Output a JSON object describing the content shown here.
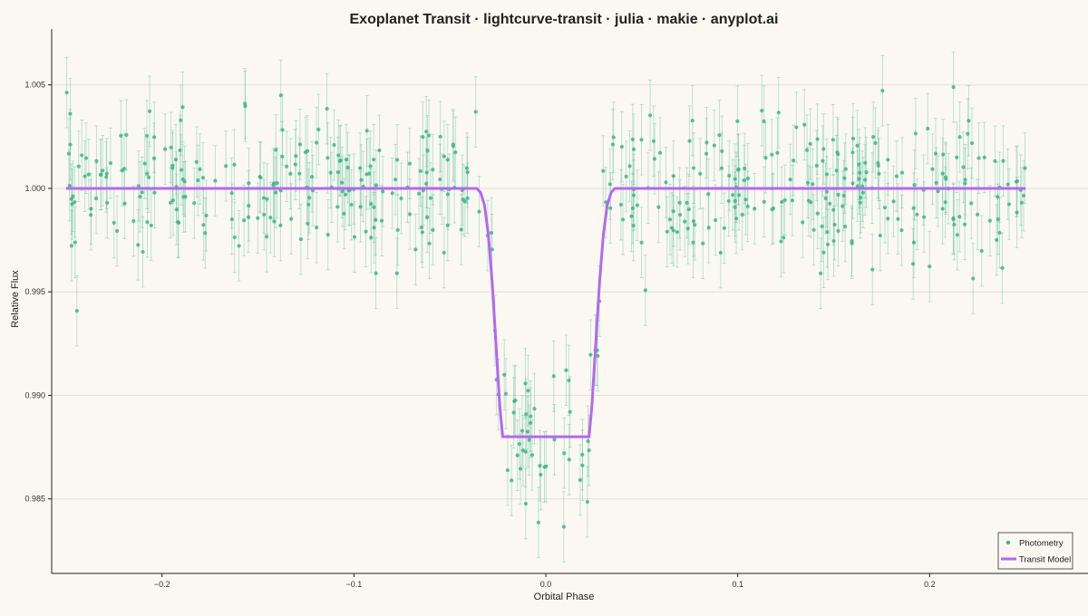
{
  "chart_data": {
    "type": "scatter",
    "title": "Exoplanet Transit · lightcurve-transit · julia · makie · anyplot.ai",
    "xlabel": "Orbital Phase",
    "ylabel": "Relative Flux",
    "xlim": [
      -0.2575,
      0.2825
    ],
    "ylim": [
      0.9814,
      1.0077
    ],
    "x_ticks": [
      -0.2,
      -0.1,
      0.0,
      0.1,
      0.2
    ],
    "x_tick_labels": [
      "−0.2",
      "−0.1",
      "0.0",
      "0.1",
      "0.2"
    ],
    "y_ticks": [
      0.985,
      0.99,
      0.995,
      1.0,
      1.005
    ],
    "y_tick_labels": [
      "0.985",
      "0.990",
      "0.995",
      "1.000",
      "1.005"
    ],
    "grid": "horizontal",
    "legend_position": "bottom-right",
    "colors": {
      "photometry": "#3DB58A",
      "model": "#B667F1",
      "background": "#FAF8F1"
    },
    "series": [
      {
        "name": "Photometry",
        "kind": "points-with-errorbars",
        "x_range": [
          -0.25,
          0.25
        ],
        "n_points": 500,
        "baseline_flux": 1.0,
        "flux_scatter_sd": 0.0017,
        "error_bar_halfwidth": 0.0017
      },
      {
        "name": "Transit Model",
        "kind": "line",
        "points": [
          [
            -0.25,
            1.0
          ],
          [
            -0.036,
            1.0
          ],
          [
            -0.034,
            0.9998
          ],
          [
            -0.032,
            0.9992
          ],
          [
            -0.03,
            0.9978
          ],
          [
            -0.028,
            0.9955
          ],
          [
            -0.026,
            0.9925
          ],
          [
            -0.024,
            0.9895
          ],
          [
            -0.0225,
            0.988
          ],
          [
            0.0225,
            0.988
          ],
          [
            0.024,
            0.9895
          ],
          [
            0.026,
            0.9925
          ],
          [
            0.028,
            0.9955
          ],
          [
            0.03,
            0.9978
          ],
          [
            0.032,
            0.9992
          ],
          [
            0.034,
            0.9998
          ],
          [
            0.036,
            1.0
          ],
          [
            0.25,
            1.0
          ]
        ]
      }
    ]
  }
}
